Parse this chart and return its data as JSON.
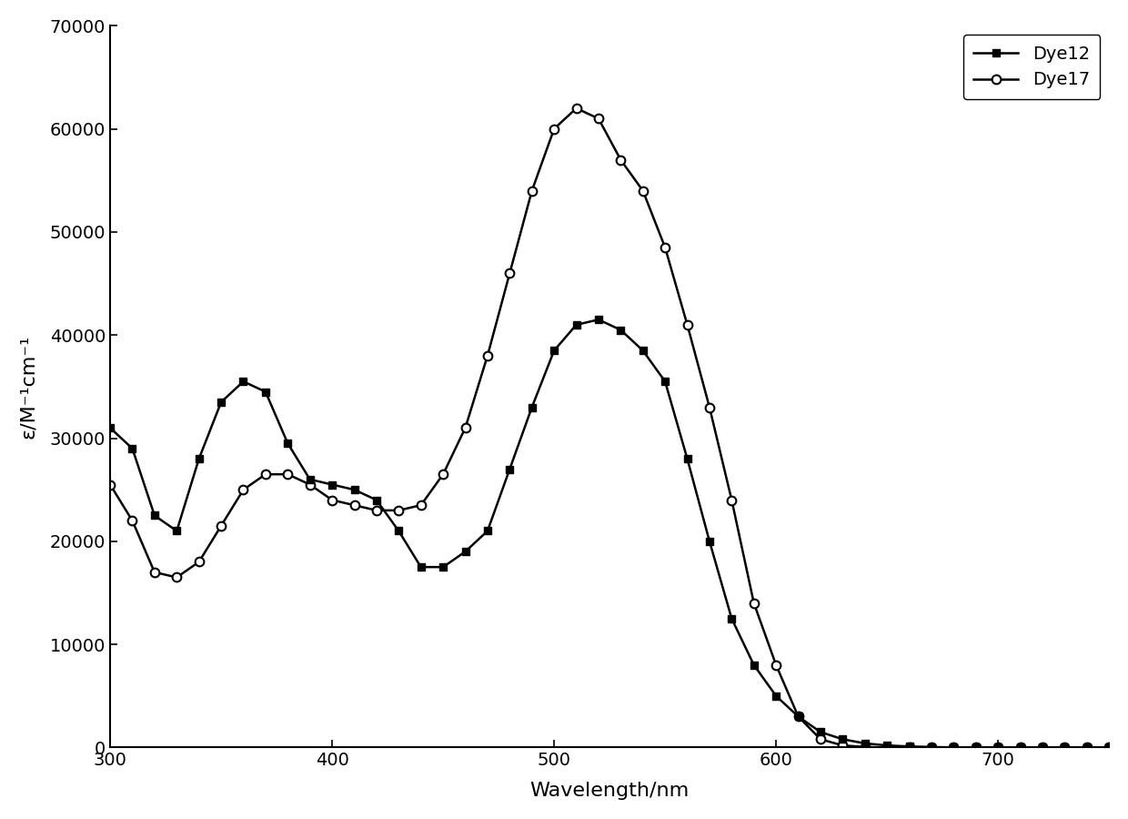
{
  "dye12_x": [
    300,
    310,
    320,
    330,
    340,
    350,
    360,
    370,
    380,
    390,
    400,
    410,
    420,
    430,
    440,
    450,
    460,
    470,
    480,
    490,
    500,
    510,
    520,
    530,
    540,
    550,
    560,
    570,
    580,
    590,
    600,
    610,
    620,
    630,
    640,
    650,
    660,
    670,
    680,
    690,
    700,
    710,
    720,
    730,
    740,
    750
  ],
  "dye12_y": [
    31000,
    29000,
    22500,
    21000,
    28000,
    33500,
    35500,
    34500,
    29500,
    26000,
    25500,
    25000,
    24000,
    21000,
    17500,
    17500,
    19000,
    21000,
    27000,
    33000,
    38500,
    41000,
    41500,
    40500,
    38500,
    35500,
    28000,
    20000,
    12500,
    8000,
    5000,
    3000,
    1500,
    800,
    400,
    200,
    100,
    50,
    0,
    0,
    0,
    0,
    0,
    0,
    0,
    0
  ],
  "dye17_x": [
    300,
    310,
    320,
    330,
    340,
    350,
    360,
    370,
    380,
    390,
    400,
    410,
    420,
    430,
    440,
    450,
    460,
    470,
    480,
    490,
    500,
    510,
    520,
    530,
    540,
    550,
    560,
    570,
    580,
    590,
    600,
    610,
    620,
    630,
    640,
    650,
    660,
    670,
    680,
    690,
    700,
    710,
    720,
    730,
    740,
    750
  ],
  "dye17_y": [
    25500,
    22000,
    17000,
    16500,
    18000,
    21500,
    25000,
    26500,
    26500,
    25500,
    24000,
    23500,
    23000,
    23000,
    23500,
    26500,
    31000,
    38000,
    46000,
    54000,
    60000,
    62000,
    61000,
    57000,
    54000,
    48500,
    41000,
    33000,
    24000,
    14000,
    8000,
    3000,
    800,
    200,
    50,
    0,
    0,
    0,
    0,
    0,
    0,
    0,
    0,
    0,
    0,
    0
  ],
  "xlabel": "Wavelength/nm",
  "ylabel": "ε/M⁻¹cm⁻¹",
  "xlim": [
    300,
    750
  ],
  "ylim": [
    0,
    70000
  ],
  "yticks": [
    0,
    10000,
    20000,
    30000,
    40000,
    50000,
    60000,
    70000
  ],
  "xticks": [
    300,
    400,
    500,
    600,
    700
  ],
  "legend_labels": [
    "Dye12",
    "Dye17"
  ],
  "line_color": "#000000",
  "background_color": "#ffffff",
  "marker_every_dye12": 1,
  "marker_every_dye17": 1
}
